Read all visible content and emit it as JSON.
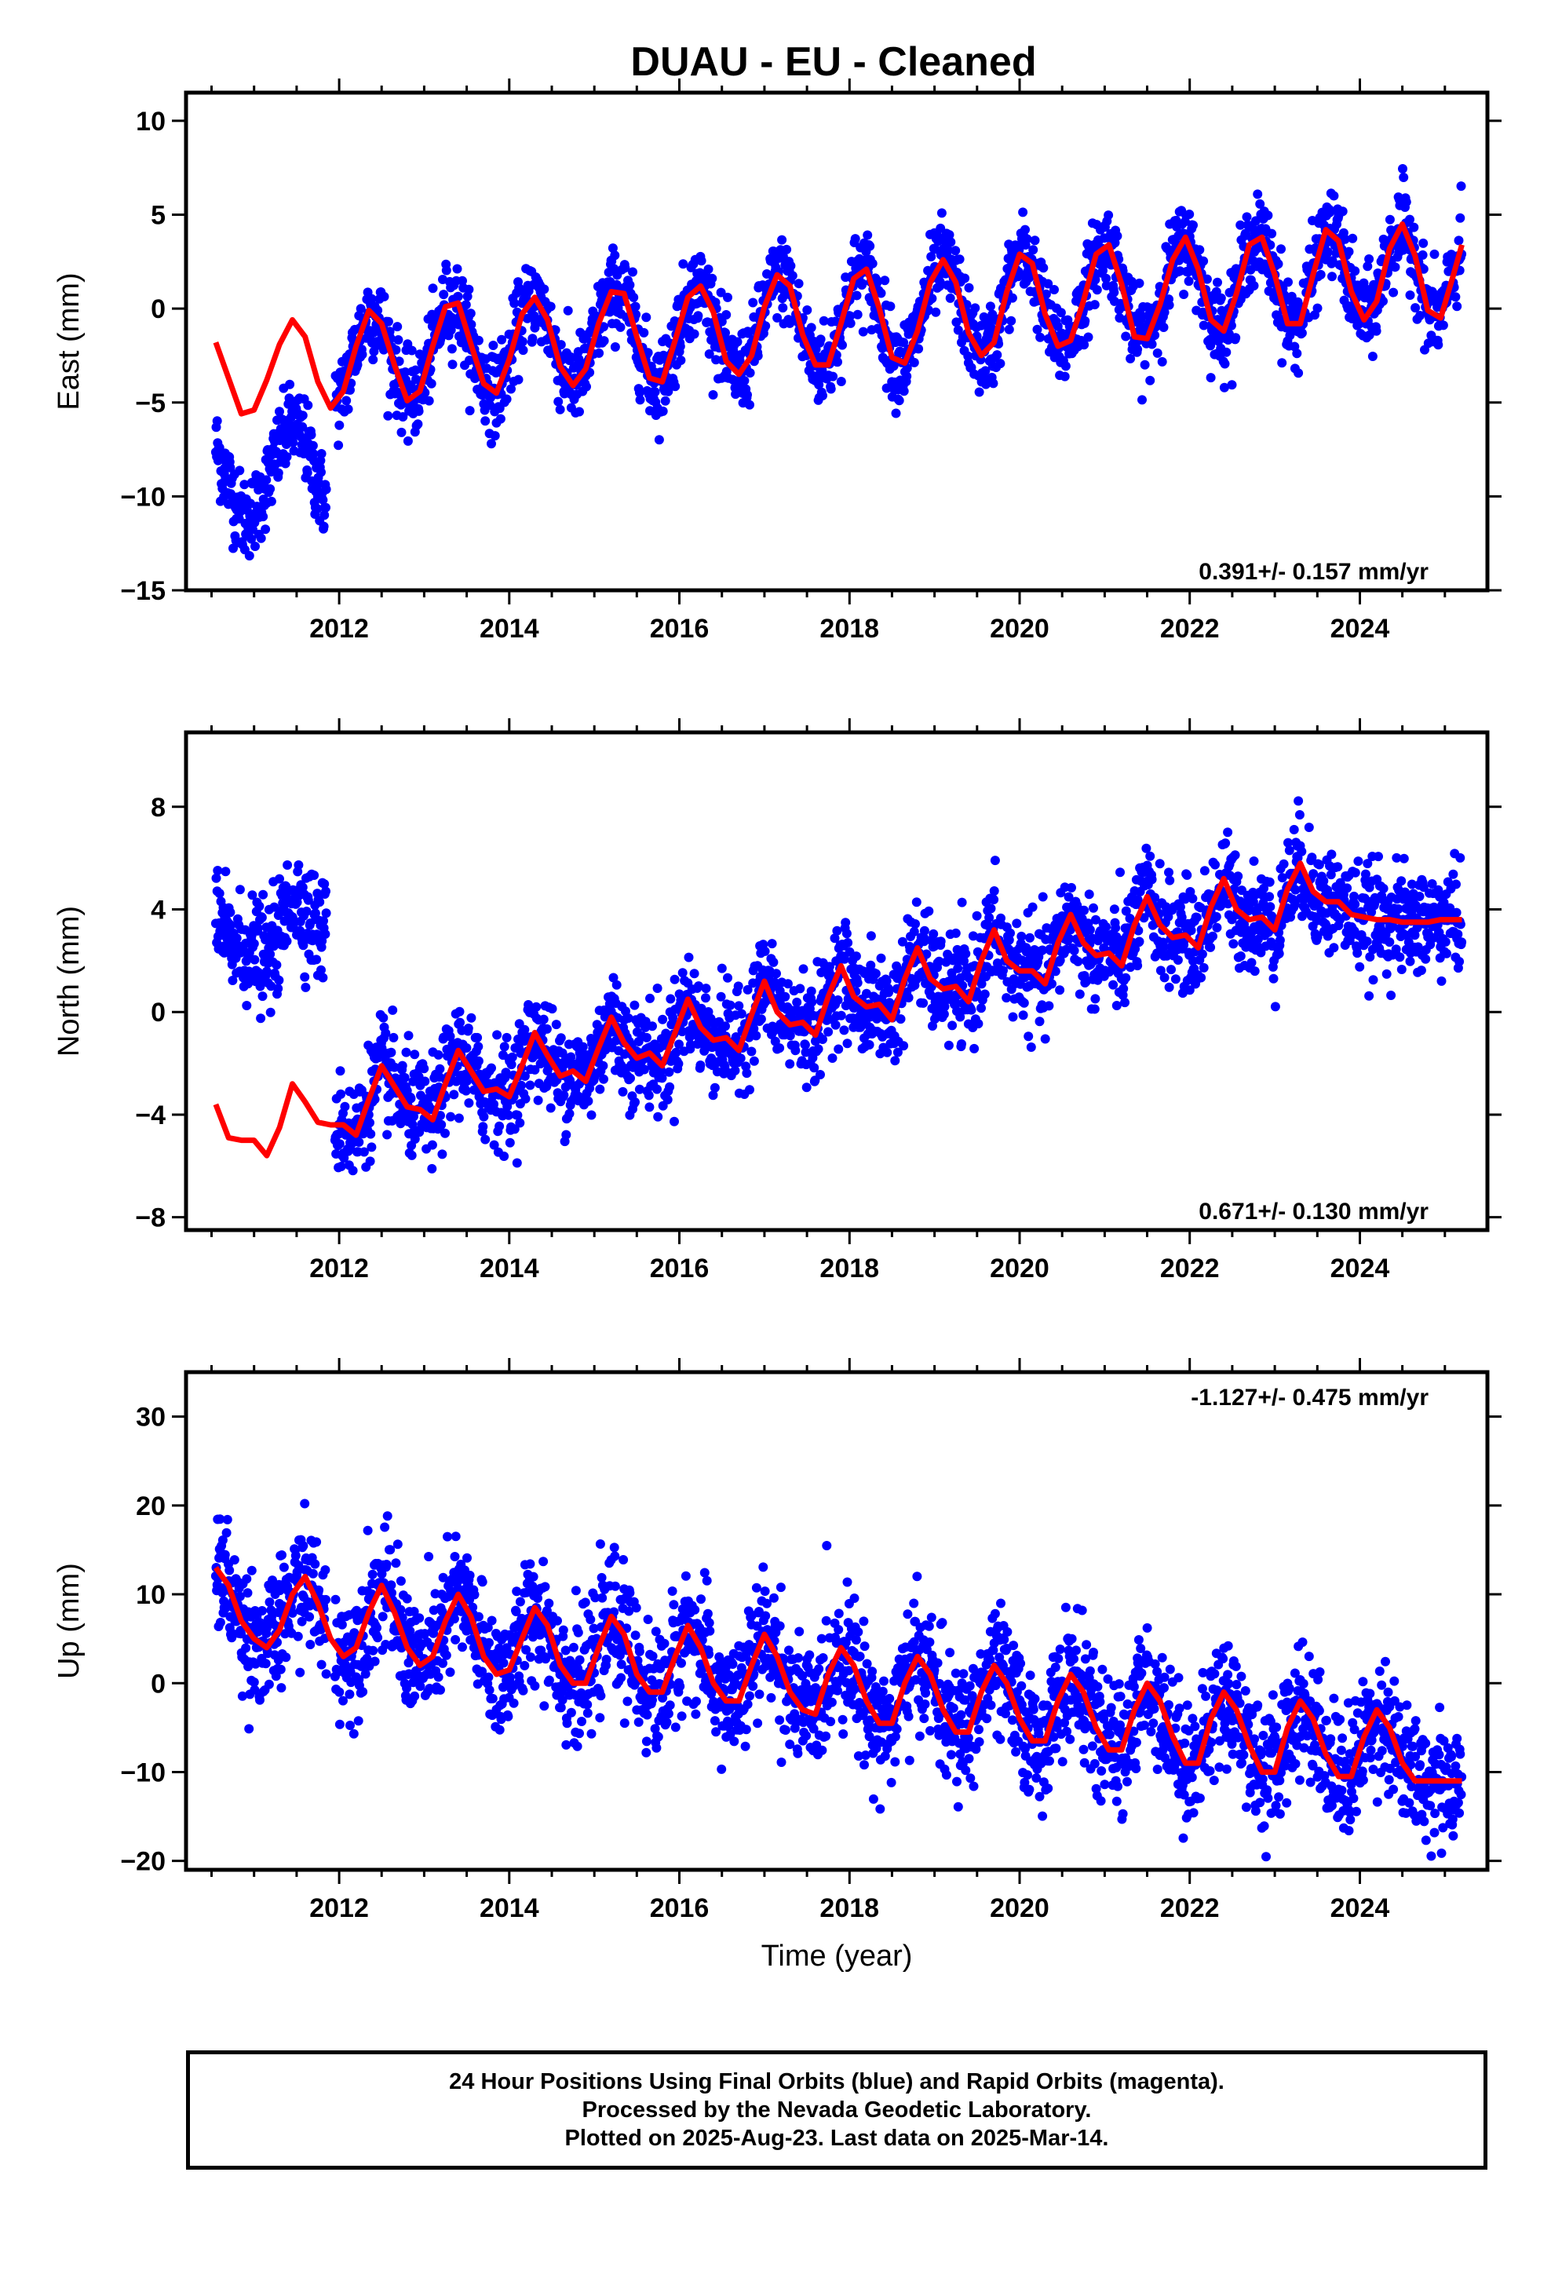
{
  "title": "DUAU  - EU - Cleaned",
  "colors": {
    "data": "#0000ff",
    "model": "#ff0000",
    "frame": "#000000"
  },
  "footer": {
    "line1": "24 Hour Positions Using Final Orbits (blue) and Rapid Orbits (magenta).",
    "line2": "Processed by the Nevada Geodetic Laboratory.",
    "line3": "Plotted on 2025-Aug-23. Last data on 2025-Mar-14."
  },
  "chart_data": [
    {
      "type": "scatter",
      "ylabel": "East (mm)",
      "xlabel": "",
      "xlim": [
        2010.2,
        2025.5
      ],
      "ylim": [
        -15,
        11.5
      ],
      "yticks": [
        -15,
        -10,
        -5,
        0,
        5,
        10
      ],
      "xticks": [
        2012,
        2014,
        2016,
        2018,
        2020,
        2022,
        2024
      ],
      "rate_label": "0.391+/- 0.157 mm/yr",
      "rate_label_position": "bottom-right",
      "series": [
        {
          "kind": "model-fit",
          "x": [
            2010.55,
            2010.7,
            2010.85,
            2011.0,
            2011.15,
            2011.3,
            2011.45,
            2011.6,
            2011.75,
            2011.9,
            2012.05,
            2012.2,
            2012.35,
            2012.5,
            2012.65,
            2012.8,
            2012.95,
            2013.1,
            2013.25,
            2013.4,
            2013.55,
            2013.7,
            2013.85,
            2014.0,
            2014.15,
            2014.3,
            2014.45,
            2014.6,
            2014.75,
            2014.9,
            2015.05,
            2015.2,
            2015.35,
            2015.5,
            2015.65,
            2015.8,
            2015.95,
            2016.1,
            2016.25,
            2016.4,
            2016.55,
            2016.7,
            2016.85,
            2017.0,
            2017.15,
            2017.3,
            2017.45,
            2017.6,
            2017.75,
            2017.9,
            2018.05,
            2018.2,
            2018.35,
            2018.5,
            2018.65,
            2018.8,
            2018.95,
            2019.1,
            2019.25,
            2019.4,
            2019.55,
            2019.7,
            2019.85,
            2020.0,
            2020.15,
            2020.3,
            2020.45,
            2020.6,
            2020.75,
            2020.9,
            2021.05,
            2021.2,
            2021.35,
            2021.5,
            2021.65,
            2021.8,
            2021.95,
            2022.1,
            2022.25,
            2022.4,
            2022.55,
            2022.7,
            2022.85,
            2023.0,
            2023.15,
            2023.3,
            2023.45,
            2023.6,
            2023.75,
            2023.9,
            2024.05,
            2024.2,
            2024.35,
            2024.5,
            2024.65,
            2024.8,
            2024.95,
            2025.1,
            2025.2
          ],
          "y": [
            -1.8,
            -3.7,
            -5.6,
            -5.4,
            -3.8,
            -1.9,
            -0.6,
            -1.5,
            -3.9,
            -5.3,
            -4.4,
            -2.0,
            -0.1,
            -0.8,
            -3.0,
            -4.9,
            -4.4,
            -2.0,
            0.1,
            0.3,
            -1.9,
            -4.0,
            -4.5,
            -2.7,
            -0.3,
            0.6,
            -0.6,
            -3.1,
            -4.1,
            -3.2,
            -0.8,
            0.9,
            0.8,
            -1.5,
            -3.7,
            -3.9,
            -1.7,
            0.6,
            1.2,
            -0.2,
            -2.8,
            -3.5,
            -2.5,
            0.1,
            1.8,
            1.2,
            -1.4,
            -3.0,
            -3.0,
            -0.8,
            1.6,
            2.1,
            0.0,
            -2.6,
            -2.9,
            -1.2,
            1.4,
            2.6,
            1.4,
            -1.3,
            -2.5,
            -1.8,
            0.9,
            2.9,
            2.4,
            -0.3,
            -2.0,
            -1.7,
            0.4,
            2.9,
            3.4,
            1.3,
            -1.5,
            -1.6,
            0.2,
            2.6,
            3.8,
            2.1,
            -0.6,
            -1.2,
            0.8,
            3.4,
            3.8,
            1.8,
            -0.8,
            -0.8,
            1.8,
            4.2,
            3.6,
            0.9,
            -0.6,
            0.4,
            3.2,
            4.5,
            2.8,
            -0.1,
            -0.5,
            1.8,
            3.4
          ]
        }
      ]
    },
    {
      "type": "scatter",
      "ylabel": "North (mm)",
      "xlabel": "",
      "xlim": [
        2010.2,
        2025.5
      ],
      "ylim": [
        -8.5,
        10.9
      ],
      "yticks": [
        -8,
        -4,
        0,
        4,
        8
      ],
      "xticks": [
        2012,
        2014,
        2016,
        2018,
        2020,
        2022,
        2024
      ],
      "rate_label": "0.671+/- 0.130 mm/yr",
      "rate_label_position": "bottom-right",
      "series": [
        {
          "kind": "model-fit",
          "x": [
            2010.55,
            2010.7,
            2010.85,
            2011.0,
            2011.15,
            2011.3,
            2011.45,
            2011.6,
            2011.75,
            2011.9,
            2012.05,
            2012.2,
            2012.35,
            2012.5,
            2012.65,
            2012.8,
            2012.95,
            2013.1,
            2013.25,
            2013.4,
            2013.55,
            2013.7,
            2013.85,
            2014.0,
            2014.15,
            2014.3,
            2014.45,
            2014.6,
            2014.75,
            2014.9,
            2015.05,
            2015.2,
            2015.35,
            2015.5,
            2015.65,
            2015.8,
            2015.95,
            2016.1,
            2016.25,
            2016.4,
            2016.55,
            2016.7,
            2016.85,
            2017.0,
            2017.15,
            2017.3,
            2017.45,
            2017.6,
            2017.75,
            2017.9,
            2018.05,
            2018.2,
            2018.35,
            2018.5,
            2018.65,
            2018.8,
            2018.95,
            2019.1,
            2019.25,
            2019.4,
            2019.55,
            2019.7,
            2019.85,
            2020.0,
            2020.15,
            2020.3,
            2020.45,
            2020.6,
            2020.75,
            2020.9,
            2021.05,
            2021.2,
            2021.35,
            2021.5,
            2021.65,
            2021.8,
            2021.95,
            2022.1,
            2022.25,
            2022.4,
            2022.55,
            2022.7,
            2022.85,
            2023.0,
            2023.15,
            2023.3,
            2023.45,
            2023.6,
            2023.75,
            2023.9,
            2024.05,
            2024.2,
            2024.35,
            2024.5,
            2024.65,
            2024.8,
            2024.95,
            2025.1,
            2025.2
          ],
          "y": [
            -3.6,
            -4.9,
            -5.0,
            -5.0,
            -5.6,
            -4.5,
            -2.8,
            -3.5,
            -4.3,
            -4.4,
            -4.4,
            -4.8,
            -3.4,
            -2.1,
            -2.9,
            -3.7,
            -3.8,
            -4.2,
            -2.8,
            -1.5,
            -2.3,
            -3.1,
            -3.0,
            -3.3,
            -2.1,
            -0.8,
            -1.7,
            -2.5,
            -2.3,
            -2.7,
            -1.4,
            -0.2,
            -1.2,
            -1.8,
            -1.6,
            -2.1,
            -0.8,
            0.5,
            -0.6,
            -1.1,
            -1.0,
            -1.5,
            -0.1,
            1.2,
            0.0,
            -0.5,
            -0.4,
            -0.9,
            0.6,
            1.8,
            0.6,
            0.2,
            0.3,
            -0.3,
            1.3,
            2.5,
            1.3,
            0.9,
            1.0,
            0.4,
            2.0,
            3.2,
            2.0,
            1.6,
            1.6,
            1.1,
            2.7,
            3.8,
            2.7,
            2.2,
            2.3,
            1.8,
            3.4,
            4.5,
            3.4,
            2.9,
            3.0,
            2.5,
            4.1,
            5.2,
            4.0,
            3.6,
            3.7,
            3.2,
            4.8,
            5.8,
            4.7,
            4.3,
            4.3,
            3.8,
            3.7,
            3.6,
            3.6,
            3.5,
            3.5,
            3.5,
            3.6,
            3.6,
            3.6
          ]
        }
      ]
    },
    {
      "type": "scatter",
      "ylabel": "Up (mm)",
      "xlabel": "Time (year)",
      "xlim": [
        2010.2,
        2025.5
      ],
      "ylim": [
        -21,
        35
      ],
      "yticks": [
        -20,
        -10,
        0,
        10,
        20,
        30
      ],
      "xticks": [
        2012,
        2014,
        2016,
        2018,
        2020,
        2022,
        2024
      ],
      "rate_label": "-1.127+/- 0.475 mm/yr",
      "rate_label_position": "top-right",
      "series": [
        {
          "kind": "model-fit",
          "x": [
            2010.55,
            2010.7,
            2010.85,
            2011.0,
            2011.15,
            2011.3,
            2011.45,
            2011.6,
            2011.75,
            2011.9,
            2012.05,
            2012.2,
            2012.35,
            2012.5,
            2012.65,
            2012.8,
            2012.95,
            2013.1,
            2013.25,
            2013.4,
            2013.55,
            2013.7,
            2013.85,
            2014.0,
            2014.15,
            2014.3,
            2014.45,
            2014.6,
            2014.75,
            2014.9,
            2015.05,
            2015.2,
            2015.35,
            2015.5,
            2015.65,
            2015.8,
            2015.95,
            2016.1,
            2016.25,
            2016.4,
            2016.55,
            2016.7,
            2016.85,
            2017.0,
            2017.15,
            2017.3,
            2017.45,
            2017.6,
            2017.75,
            2017.9,
            2018.05,
            2018.2,
            2018.35,
            2018.5,
            2018.65,
            2018.8,
            2018.95,
            2019.1,
            2019.25,
            2019.4,
            2019.55,
            2019.7,
            2019.85,
            2020.0,
            2020.15,
            2020.3,
            2020.45,
            2020.6,
            2020.75,
            2020.9,
            2021.05,
            2021.2,
            2021.35,
            2021.5,
            2021.65,
            2021.8,
            2021.95,
            2022.1,
            2022.25,
            2022.4,
            2022.55,
            2022.7,
            2022.85,
            2023.0,
            2023.15,
            2023.3,
            2023.45,
            2023.6,
            2023.75,
            2023.9,
            2024.05,
            2024.2,
            2024.35,
            2024.5,
            2024.65,
            2024.8,
            2024.95,
            2025.1,
            2025.2
          ],
          "y": [
            13.0,
            11.0,
            7.0,
            5.0,
            4.0,
            6.0,
            10.0,
            12.0,
            9.0,
            5.0,
            3.0,
            4.0,
            8.0,
            11.0,
            8.0,
            4.0,
            2.0,
            3.0,
            7.0,
            10.0,
            7.5,
            3.0,
            1.0,
            1.5,
            5.0,
            8.5,
            6.5,
            2.0,
            0.0,
            0.0,
            4.0,
            7.5,
            5.5,
            1.0,
            -1.0,
            -1.0,
            3.0,
            6.5,
            4.0,
            0.0,
            -2.0,
            -2.0,
            2.0,
            5.5,
            3.0,
            -1.0,
            -3.0,
            -3.5,
            1.0,
            4.0,
            2.0,
            -2.0,
            -4.5,
            -4.5,
            0.0,
            3.0,
            1.0,
            -3.0,
            -5.5,
            -5.5,
            -1.0,
            2.0,
            0.0,
            -4.0,
            -6.5,
            -6.5,
            -2.0,
            1.0,
            -1.0,
            -5.0,
            -7.5,
            -7.5,
            -3.0,
            0.0,
            -2.0,
            -6.0,
            -9.0,
            -9.0,
            -4.0,
            -1.0,
            -3.0,
            -7.0,
            -10.0,
            -10.0,
            -5.0,
            -2.0,
            -4.0,
            -8.0,
            -10.5,
            -10.5,
            -6.0,
            -3.0,
            -5.0,
            -9.0,
            -11.0,
            -11.0,
            -11.0,
            -11.0,
            -11.0
          ]
        }
      ]
    }
  ]
}
